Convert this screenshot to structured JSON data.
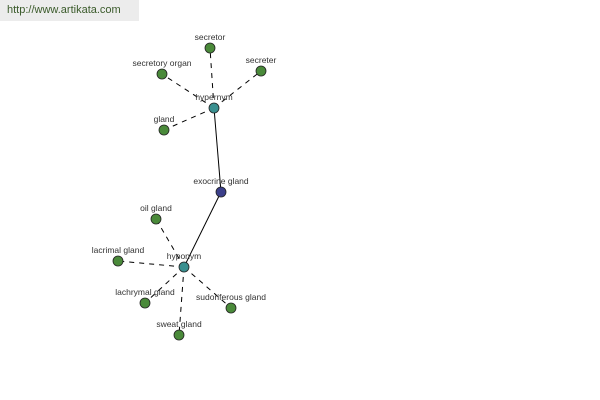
{
  "watermark": "http://www.artikata.com",
  "colors": {
    "center": "#3b3f8a",
    "relation": "#3a9090",
    "term": "#4a8a3a",
    "edge": "#000000"
  },
  "nodes": [
    {
      "id": "exocrine",
      "label": "exocrine gland",
      "kind": "center"
    },
    {
      "id": "hypernym",
      "label": "hypernym",
      "kind": "relation"
    },
    {
      "id": "hyponym",
      "label": "hyponym",
      "kind": "relation"
    },
    {
      "id": "secretor",
      "label": "secretor",
      "kind": "term"
    },
    {
      "id": "secretory_organ",
      "label": "secretory organ",
      "kind": "term"
    },
    {
      "id": "secreter",
      "label": "secreter",
      "kind": "term"
    },
    {
      "id": "gland",
      "label": "gland",
      "kind": "term"
    },
    {
      "id": "oil_gland",
      "label": "oil gland",
      "kind": "term"
    },
    {
      "id": "lacrimal_gland",
      "label": "lacrimal gland",
      "kind": "term"
    },
    {
      "id": "lachrymal_gland",
      "label": "lachrymal gland",
      "kind": "term"
    },
    {
      "id": "sudoriferous_gland",
      "label": "sudoriferous gland",
      "kind": "term"
    },
    {
      "id": "sweat_gland",
      "label": "sweat gland",
      "kind": "term"
    }
  ],
  "edges": [
    {
      "from": "exocrine",
      "to": "hypernym",
      "style": "solid"
    },
    {
      "from": "exocrine",
      "to": "hyponym",
      "style": "solid"
    },
    {
      "from": "hypernym",
      "to": "secretor",
      "style": "dashed"
    },
    {
      "from": "hypernym",
      "to": "secretory_organ",
      "style": "dashed"
    },
    {
      "from": "hypernym",
      "to": "secreter",
      "style": "dashed"
    },
    {
      "from": "hypernym",
      "to": "gland",
      "style": "dashed"
    },
    {
      "from": "hyponym",
      "to": "oil_gland",
      "style": "dashed"
    },
    {
      "from": "hyponym",
      "to": "lacrimal_gland",
      "style": "dashed"
    },
    {
      "from": "hyponym",
      "to": "lachrymal_gland",
      "style": "dashed"
    },
    {
      "from": "hyponym",
      "to": "sudoriferous_gland",
      "style": "dashed"
    },
    {
      "from": "hyponym",
      "to": "sweat_gland",
      "style": "dashed"
    }
  ]
}
